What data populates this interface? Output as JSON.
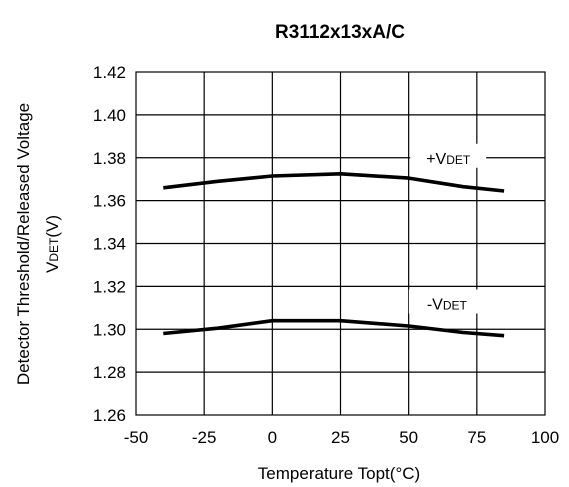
{
  "chart_data": {
    "type": "line",
    "title": "R3112x13xA/C",
    "xlabel": "Temperature Topt(°C)",
    "ylabel": {
      "line1": "Detector Threshold/Released Voltage",
      "line2_main": "V",
      "line2_sub": "DET",
      "line2_unit": "(V)"
    },
    "xlim": [
      -50,
      100
    ],
    "ylim": [
      1.26,
      1.42
    ],
    "xticks": [
      -50,
      -25,
      0,
      25,
      50,
      75,
      100
    ],
    "yticks": [
      "1.26",
      "1.28",
      "1.30",
      "1.32",
      "1.34",
      "1.36",
      "1.38",
      "1.40",
      "1.42"
    ],
    "grid": true,
    "series": [
      {
        "name": "+VDET",
        "label_prefix": "+V",
        "label_sub": "DET",
        "label_at": [
          64.5,
          1.38
        ],
        "x": [
          -40,
          -20,
          0,
          25,
          50,
          70,
          85
        ],
        "y": [
          1.366,
          1.369,
          1.3715,
          1.3725,
          1.3705,
          1.3665,
          1.3645
        ]
      },
      {
        "name": "-VDET",
        "label_prefix": "-V",
        "label_sub": "DET",
        "label_at": [
          64,
          1.312
        ],
        "x": [
          -40,
          -20,
          0,
          25,
          50,
          70,
          85
        ],
        "y": [
          1.298,
          1.3005,
          1.304,
          1.304,
          1.3015,
          1.2985,
          1.297
        ]
      }
    ]
  }
}
